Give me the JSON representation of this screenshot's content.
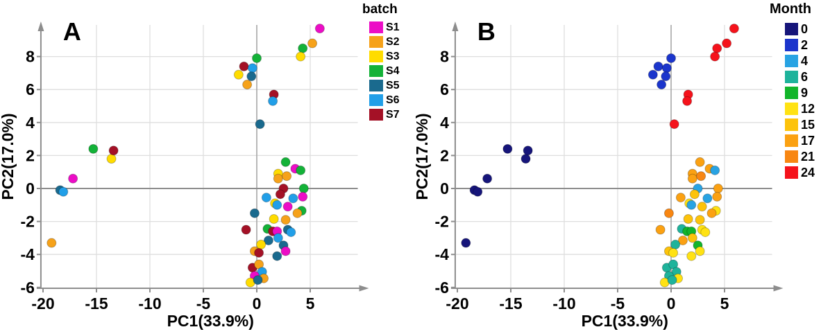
{
  "panels": [
    {
      "letter": "A",
      "xlabel": "PC1(33.9%)",
      "ylabel": "PC2(17.0%)",
      "color_by": "batch"
    },
    {
      "letter": "B",
      "xlabel": "PC1(33.9%)",
      "ylabel": "PC2(17.0%)",
      "color_by": "month"
    }
  ],
  "legends": [
    {
      "title": "batch",
      "entries": [
        {
          "label": "S1",
          "color": "#EC0DC6"
        },
        {
          "label": "S2",
          "color": "#F6A21A"
        },
        {
          "label": "S3",
          "color": "#FFDC00"
        },
        {
          "label": "S4",
          "color": "#13B238"
        },
        {
          "label": "S5",
          "color": "#1A6A8E"
        },
        {
          "label": "S6",
          "color": "#219FE8"
        },
        {
          "label": "S7",
          "color": "#A41126"
        }
      ]
    },
    {
      "title": "Month",
      "entries": [
        {
          "label": "0",
          "color": "#16157A"
        },
        {
          "label": "2",
          "color": "#1B35CC"
        },
        {
          "label": "4",
          "color": "#28A3E3"
        },
        {
          "label": "6",
          "color": "#1EB39B"
        },
        {
          "label": "9",
          "color": "#12B52A"
        },
        {
          "label": "12",
          "color": "#FFE213"
        },
        {
          "label": "15",
          "color": "#FDC30B"
        },
        {
          "label": "17",
          "color": "#FBA112"
        },
        {
          "label": "21",
          "color": "#F88612"
        },
        {
          "label": "24",
          "color": "#F5121B"
        }
      ]
    }
  ],
  "chart_data": {
    "type": "scatter",
    "xlabel": "PC1(33.9%)",
    "ylabel": "PC2(17.0%)",
    "xlim": [
      -20.5,
      9.5
    ],
    "ylim": [
      -6,
      10
    ],
    "grid": true,
    "x_ticks": [
      -20,
      -15,
      -10,
      -5,
      0,
      5
    ],
    "y_ticks": [
      8,
      6,
      4,
      2,
      0,
      -2,
      -4,
      -6
    ],
    "batch_colors": {
      "S1": "#EC0DC6",
      "S2": "#F6A21A",
      "S3": "#FFDC00",
      "S4": "#13B238",
      "S5": "#1A6A8E",
      "S6": "#219FE8",
      "S7": "#A41126"
    },
    "month_colors": {
      "0": "#16157A",
      "2": "#1B35CC",
      "4": "#28A3E3",
      "6": "#1EB39B",
      "9": "#12B52A",
      "12": "#FFE213",
      "15": "#FDC30B",
      "17": "#FBA112",
      "21": "#F88612",
      "24": "#F5121B"
    },
    "points": [
      {
        "x": -19.2,
        "y": -3.3,
        "batch": "S2",
        "month": 0
      },
      {
        "x": -18.4,
        "y": -0.1,
        "batch": "S5",
        "month": 0
      },
      {
        "x": -18.1,
        "y": -0.2,
        "batch": "S6",
        "month": 0
      },
      {
        "x": -17.2,
        "y": 0.6,
        "batch": "S1",
        "month": 0
      },
      {
        "x": -15.3,
        "y": 2.4,
        "batch": "S4",
        "month": 0
      },
      {
        "x": -13.6,
        "y": 1.8,
        "batch": "S3",
        "month": 0
      },
      {
        "x": -13.4,
        "y": 2.3,
        "batch": "S7",
        "month": 0
      },
      {
        "x": 0.0,
        "y": 7.9,
        "batch": "S4",
        "month": 2
      },
      {
        "x": -1.2,
        "y": 7.4,
        "batch": "S7",
        "month": 2
      },
      {
        "x": -0.4,
        "y": 7.3,
        "batch": "S6",
        "month": 2
      },
      {
        "x": -1.7,
        "y": 6.9,
        "batch": "S3",
        "month": 2
      },
      {
        "x": -0.5,
        "y": 6.8,
        "batch": "S5",
        "month": 2
      },
      {
        "x": -0.9,
        "y": 6.3,
        "batch": "S2",
        "month": 2
      },
      {
        "x": 5.9,
        "y": 9.7,
        "batch": "S1",
        "month": 24
      },
      {
        "x": 5.2,
        "y": 8.8,
        "batch": "S2",
        "month": 24
      },
      {
        "x": 4.3,
        "y": 8.5,
        "batch": "S4",
        "month": 24
      },
      {
        "x": 4.1,
        "y": 8.0,
        "batch": "S3",
        "month": 24
      },
      {
        "x": 1.6,
        "y": 5.7,
        "batch": "S7",
        "month": 24
      },
      {
        "x": 1.5,
        "y": 5.3,
        "batch": "S6",
        "month": 24
      },
      {
        "x": 0.3,
        "y": 3.9,
        "batch": "S5",
        "month": 24
      },
      {
        "x": 2.7,
        "y": 1.6,
        "batch": "S4",
        "month": 17
      },
      {
        "x": 3.6,
        "y": 1.2,
        "batch": "S1",
        "month": 17
      },
      {
        "x": 4.1,
        "y": 1.1,
        "batch": "S4",
        "month": 4
      },
      {
        "x": 2.0,
        "y": 0.9,
        "batch": "S3",
        "month": 17
      },
      {
        "x": 2.0,
        "y": 0.6,
        "batch": "S2",
        "month": 17
      },
      {
        "x": 2.8,
        "y": 0.75,
        "batch": "S2",
        "month": 21
      },
      {
        "x": 4.4,
        "y": 0.0,
        "batch": "S4",
        "month": 17
      },
      {
        "x": 2.5,
        "y": 0.0,
        "batch": "S7",
        "month": 4
      },
      {
        "x": 2.2,
        "y": -0.35,
        "batch": "S7",
        "month": 15
      },
      {
        "x": 0.9,
        "y": -0.55,
        "batch": "S6",
        "month": 17
      },
      {
        "x": 3.4,
        "y": -0.6,
        "batch": "S6",
        "month": 4
      },
      {
        "x": 4.3,
        "y": -0.5,
        "batch": "S1",
        "month": 17
      },
      {
        "x": 1.7,
        "y": -0.9,
        "batch": "S3",
        "month": 12
      },
      {
        "x": 1.9,
        "y": -1.0,
        "batch": "S6",
        "month": 4
      },
      {
        "x": 2.9,
        "y": -1.1,
        "batch": "S1",
        "month": 15
      },
      {
        "x": 4.2,
        "y": -1.35,
        "batch": "S4",
        "month": 12
      },
      {
        "x": -0.2,
        "y": -1.5,
        "batch": "S5",
        "month": 21
      },
      {
        "x": 3.8,
        "y": -1.5,
        "batch": "S2",
        "month": 17
      },
      {
        "x": 1.6,
        "y": -1.85,
        "batch": "S3",
        "month": 15
      },
      {
        "x": 2.7,
        "y": -1.9,
        "batch": "S2",
        "month": 15
      },
      {
        "x": -1.0,
        "y": -2.5,
        "batch": "S7",
        "month": 17
      },
      {
        "x": 1.0,
        "y": -2.45,
        "batch": "S4",
        "month": 6
      },
      {
        "x": 1.5,
        "y": -2.6,
        "batch": "S7",
        "month": 9
      },
      {
        "x": 1.9,
        "y": -2.6,
        "batch": "S1",
        "month": 9
      },
      {
        "x": 2.9,
        "y": -2.5,
        "batch": "S5",
        "month": 12
      },
      {
        "x": 3.2,
        "y": -2.65,
        "batch": "S6",
        "month": 12
      },
      {
        "x": 2.0,
        "y": -3.0,
        "batch": "S6",
        "month": 15
      },
      {
        "x": 1.1,
        "y": -3.15,
        "batch": "S5",
        "month": 17
      },
      {
        "x": 0.4,
        "y": -3.4,
        "batch": "S3",
        "month": 6
      },
      {
        "x": 2.5,
        "y": -3.45,
        "batch": "S5",
        "month": 9
      },
      {
        "x": 2.7,
        "y": -3.8,
        "batch": "S1",
        "month": 12
      },
      {
        "x": -0.2,
        "y": -3.8,
        "batch": "S2",
        "month": 15
      },
      {
        "x": 0.2,
        "y": -3.9,
        "batch": "S7",
        "month": 12
      },
      {
        "x": 1.9,
        "y": -4.1,
        "batch": "S5",
        "month": 12
      },
      {
        "x": -0.4,
        "y": -4.8,
        "batch": "S7",
        "month": 6
      },
      {
        "x": 0.2,
        "y": -4.6,
        "batch": "S2",
        "month": 6
      },
      {
        "x": 0.5,
        "y": -5.05,
        "batch": "S6",
        "month": 6
      },
      {
        "x": -0.2,
        "y": -5.3,
        "batch": "S1",
        "month": 6
      },
      {
        "x": 0.65,
        "y": -5.45,
        "batch": "S2",
        "month": 12
      },
      {
        "x": -0.6,
        "y": -5.7,
        "batch": "S3",
        "month": 12
      },
      {
        "x": 0.1,
        "y": -5.55,
        "batch": "S5",
        "month": 6
      }
    ]
  }
}
